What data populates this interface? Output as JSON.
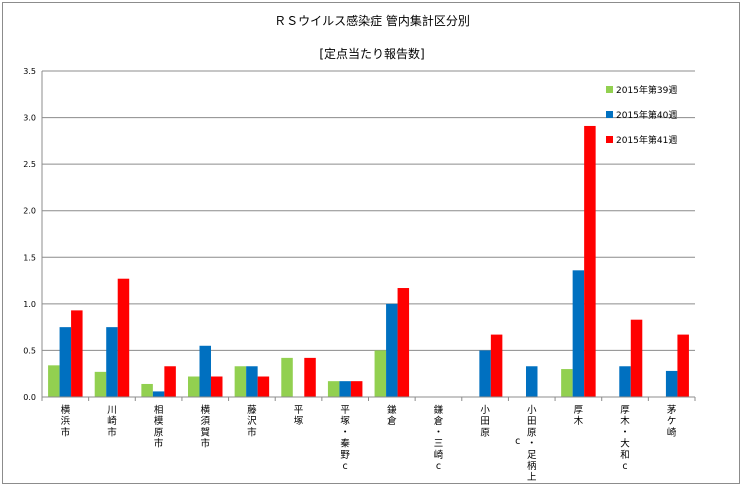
{
  "chart_data": {
    "type": "bar",
    "title": "ＲＳウイルス感染症 管内集計区分別",
    "subtitle": "[定点当たり報告数]",
    "categories": [
      [
        "横",
        "浜",
        "市"
      ],
      [
        "川",
        "崎",
        "市"
      ],
      [
        "相",
        "模",
        "原",
        "市"
      ],
      [
        "横",
        "須",
        "賀",
        "市"
      ],
      [
        "藤",
        "沢",
        "市"
      ],
      [
        "平",
        "塚"
      ],
      [
        "平",
        "塚",
        "・",
        "秦",
        "野",
        "c"
      ],
      [
        "鎌",
        "倉"
      ],
      [
        "鎌",
        "倉",
        "・",
        "三",
        "崎",
        "c"
      ],
      [
        "小",
        "田",
        "原"
      ],
      [
        "小",
        "田",
        "原",
        "・",
        "足",
        "柄",
        "上"
      ],
      [
        "厚",
        "木"
      ],
      [
        "厚",
        "木",
        "・",
        "大",
        "和",
        "c"
      ],
      [
        "茅",
        "ケ",
        "崎"
      ]
    ],
    "extra_marks": [
      {
        "category_index": 10,
        "text": "c"
      }
    ],
    "series": [
      {
        "name": "2015年第39週",
        "color": "#92d050",
        "values": [
          0.34,
          0.27,
          0.14,
          0.22,
          0.33,
          0.42,
          0.17,
          0.5,
          0,
          0,
          0,
          0.3,
          0,
          0
        ]
      },
      {
        "name": "2015年第40週",
        "color": "#0070c0",
        "values": [
          0.75,
          0.75,
          0.06,
          0.55,
          0.33,
          0,
          0.17,
          1.0,
          0,
          0.5,
          0.33,
          1.36,
          0.33,
          0.28
        ]
      },
      {
        "name": "2015年第41週",
        "color": "#ff0000",
        "values": [
          0.93,
          1.27,
          0.33,
          0.22,
          0.22,
          0.42,
          0.17,
          1.17,
          0,
          0.67,
          0,
          2.91,
          0.83,
          0.67
        ]
      }
    ],
    "ylim": [
      0,
      3.5
    ],
    "yticks": [
      "0.0",
      "0.5",
      "1.0",
      "1.5",
      "2.0",
      "2.5",
      "3.0",
      "3.5"
    ],
    "grid": true,
    "legend_position": "top-right"
  }
}
